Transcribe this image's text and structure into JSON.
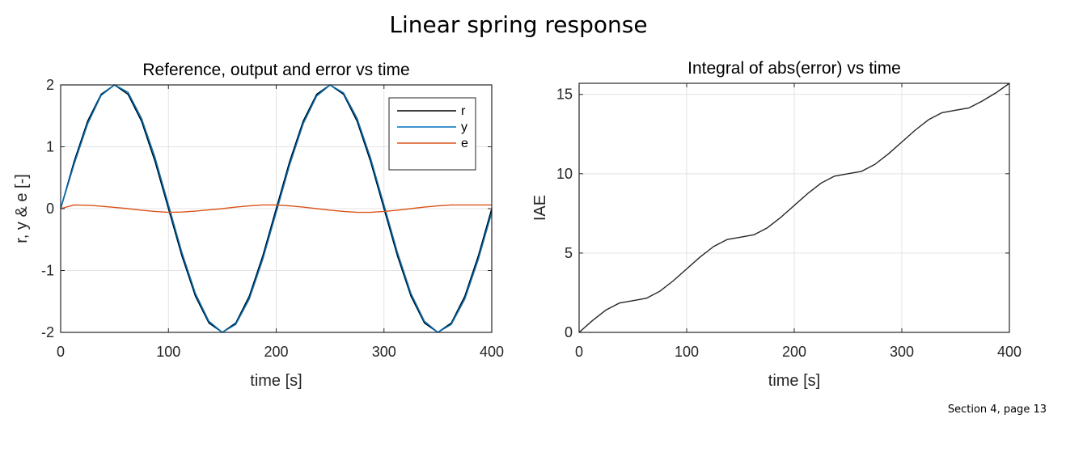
{
  "page": {
    "title": "Linear spring response",
    "footer": "Section 4, page 13"
  },
  "colors": {
    "r": "#000000",
    "y": "#0072BD",
    "e": "#D95319",
    "iae": "#262626",
    "grid": "#e3e3e3",
    "axis": "#262626"
  },
  "chart_data": [
    {
      "type": "line",
      "title": "Reference, output and error vs time",
      "xlabel": "time [s]",
      "ylabel": "r, y & e [-]",
      "xlim": [
        0,
        400
      ],
      "ylim": [
        -2,
        2
      ],
      "xticks": [
        0,
        100,
        200,
        300,
        400
      ],
      "yticks": [
        -2,
        -1,
        0,
        1,
        2
      ],
      "grid": true,
      "legend": {
        "placement": "top-right",
        "entries": [
          "r",
          "y",
          "e"
        ]
      },
      "series": [
        {
          "name": "r",
          "color": "#000000",
          "x": [
            0,
            12.5,
            25,
            37.5,
            50,
            62.5,
            75,
            87.5,
            100,
            112.5,
            125,
            137.5,
            150,
            162.5,
            175,
            187.5,
            200,
            212.5,
            225,
            237.5,
            250,
            262.5,
            275,
            287.5,
            300,
            312.5,
            325,
            337.5,
            350,
            362.5,
            375,
            387.5,
            400
          ],
          "y": [
            0,
            0.765,
            1.414,
            1.848,
            2,
            1.848,
            1.414,
            0.765,
            0,
            -0.765,
            -1.414,
            -1.848,
            -2,
            -1.848,
            -1.414,
            -0.765,
            0,
            0.765,
            1.414,
            1.848,
            2,
            1.848,
            1.414,
            0.765,
            0,
            -0.765,
            -1.414,
            -1.848,
            -2,
            -1.848,
            -1.414,
            -0.765,
            0
          ]
        },
        {
          "name": "y",
          "color": "#0072BD",
          "x": [
            0,
            12.5,
            25,
            37.5,
            50,
            62.5,
            75,
            87.5,
            100,
            112.5,
            125,
            137.5,
            150,
            162.5,
            175,
            187.5,
            200,
            212.5,
            225,
            237.5,
            250,
            262.5,
            275,
            287.5,
            300,
            312.5,
            325,
            337.5,
            350,
            362.5,
            375,
            387.5,
            400
          ],
          "y": [
            0,
            0.72,
            1.37,
            1.83,
            2,
            1.88,
            1.46,
            0.83,
            0.06,
            -0.71,
            -1.37,
            -1.82,
            -2,
            -1.87,
            -1.46,
            -0.82,
            -0.06,
            0.71,
            1.37,
            1.82,
            2,
            1.87,
            1.46,
            0.82,
            0.06,
            -0.71,
            -1.37,
            -1.82,
            -2,
            -1.87,
            -1.46,
            -0.82,
            -0.06
          ]
        },
        {
          "name": "e",
          "color": "#D95319",
          "x": [
            0,
            12.5,
            25,
            37.5,
            50,
            62.5,
            75,
            87.5,
            100,
            112.5,
            125,
            137.5,
            150,
            162.5,
            175,
            187.5,
            200,
            212.5,
            225,
            237.5,
            250,
            262.5,
            275,
            287.5,
            300,
            312.5,
            325,
            337.5,
            350,
            362.5,
            375,
            387.5,
            400
          ],
          "y": [
            0,
            0.06,
            0.055,
            0.04,
            0.02,
            0,
            -0.025,
            -0.045,
            -0.06,
            -0.055,
            -0.04,
            -0.02,
            0,
            0.025,
            0.045,
            0.06,
            0.06,
            0.045,
            0.025,
            0,
            -0.025,
            -0.045,
            -0.06,
            -0.06,
            -0.045,
            -0.025,
            0,
            0.025,
            0.045,
            0.06,
            0.06,
            0.06,
            0.06
          ]
        }
      ]
    },
    {
      "type": "line",
      "title": "Integral of abs(error) vs time",
      "xlabel": "time [s]",
      "ylabel": "IAE",
      "xlim": [
        0,
        400
      ],
      "ylim": [
        0,
        15.7
      ],
      "xticks": [
        0,
        100,
        200,
        300,
        400
      ],
      "yticks": [
        0,
        5,
        10,
        15
      ],
      "grid": true,
      "series": [
        {
          "color": "#262626",
          "x": [
            0,
            12.5,
            25,
            37.5,
            50,
            62.5,
            75,
            87.5,
            100,
            112.5,
            125,
            137.5,
            150,
            162.5,
            175,
            187.5,
            200,
            212.5,
            225,
            237.5,
            250,
            262.5,
            275,
            287.5,
            300,
            312.5,
            325,
            337.5,
            350,
            362.5,
            375,
            387.5,
            400
          ],
          "y": [
            0,
            0.75,
            1.41,
            1.85,
            2.0,
            2.15,
            2.59,
            3.25,
            4.0,
            4.75,
            5.41,
            5.85,
            6.0,
            6.15,
            6.59,
            7.25,
            8.0,
            8.75,
            9.41,
            9.85,
            10.0,
            10.15,
            10.59,
            11.25,
            12.0,
            12.75,
            13.41,
            13.85,
            14.0,
            14.15,
            14.59,
            15.1,
            15.7
          ]
        }
      ]
    }
  ]
}
